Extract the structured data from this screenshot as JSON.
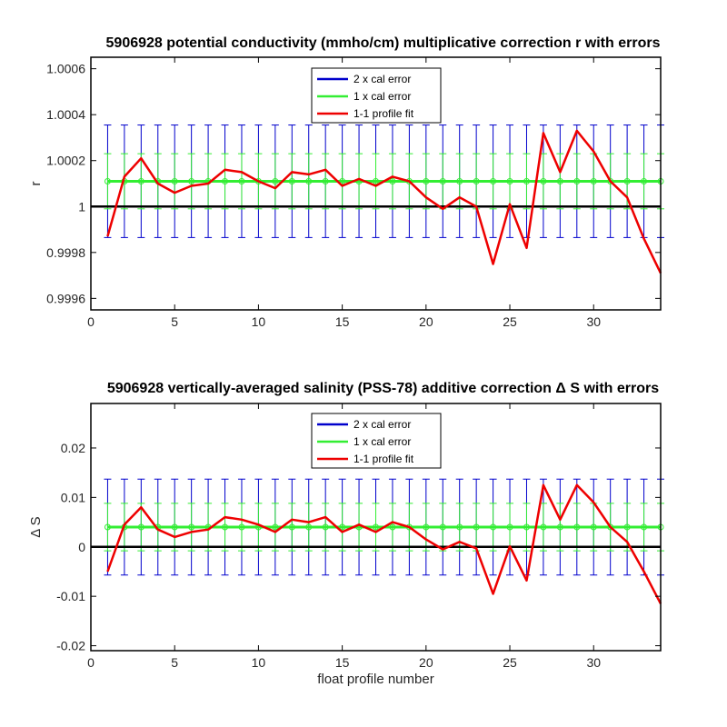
{
  "chart_data": [
    {
      "type": "line",
      "title": "5906928 potential conductivity (mmho/cm) multiplicative correction r with errors",
      "xlabel": "",
      "ylabel": "r",
      "xlim": [
        0,
        34
      ],
      "ylim": [
        0.99955,
        1.00065
      ],
      "xticks": [
        0,
        5,
        10,
        15,
        20,
        25,
        30
      ],
      "xtick_labels": [
        "0",
        "5",
        "10",
        "15",
        "20",
        "25",
        "30"
      ],
      "yticks": [
        0.9996,
        0.9998,
        1,
        1.0002,
        1.0004,
        1.0006
      ],
      "ytick_labels": [
        "0.9996",
        "0.9998",
        "1",
        "1.0002",
        "1.0004",
        "1.0006"
      ],
      "reference_line": 1,
      "legend_position": "top-center",
      "legend": [
        {
          "label": "2 x cal error",
          "color": "#0000cc"
        },
        {
          "label": "1 x cal error",
          "color": "#33ee33"
        },
        {
          "label": "1-1 profile fit",
          "color": "#ee0000"
        }
      ],
      "calibration": {
        "mean": 1.00011,
        "err1": 0.00012,
        "err2": 0.000245
      },
      "x": [
        1,
        2,
        3,
        4,
        5,
        6,
        7,
        8,
        9,
        10,
        11,
        12,
        13,
        14,
        15,
        16,
        17,
        18,
        19,
        20,
        21,
        22,
        23,
        24,
        25,
        26,
        27,
        28,
        29,
        30,
        31,
        32,
        33,
        34
      ],
      "series": [
        {
          "name": "1-1 profile fit",
          "values": [
            0.99987,
            1.00013,
            1.00021,
            1.0001,
            1.00006,
            1.00009,
            1.0001,
            1.00016,
            1.00015,
            1.00011,
            1.00008,
            1.00015,
            1.00014,
            1.00016,
            1.00009,
            1.00012,
            1.00009,
            1.00013,
            1.00011,
            1.00004,
            0.99999,
            1.00004,
            1.0,
            0.99975,
            1.00001,
            0.99982,
            1.00032,
            1.00015,
            1.00033,
            1.00024,
            1.00011,
            1.00004,
            0.99986,
            0.99971
          ]
        }
      ]
    },
    {
      "type": "line",
      "title": "5906928 vertically-averaged salinity (PSS-78) additive correction Δ S with errors",
      "xlabel": "float profile number",
      "ylabel": "Δ S",
      "xlim": [
        0,
        34
      ],
      "ylim": [
        -0.021,
        0.029
      ],
      "xticks": [
        0,
        5,
        10,
        15,
        20,
        25,
        30
      ],
      "xtick_labels": [
        "0",
        "5",
        "10",
        "15",
        "20",
        "25",
        "30"
      ],
      "yticks": [
        -0.02,
        -0.01,
        0,
        0.01,
        0.02
      ],
      "ytick_labels": [
        "-0.02",
        "-0.01",
        "0",
        "0.01",
        "0.02"
      ],
      "reference_line": 0,
      "legend_position": "top-center",
      "legend": [
        {
          "label": "2 x cal error",
          "color": "#0000cc"
        },
        {
          "label": "1 x cal error",
          "color": "#33ee33"
        },
        {
          "label": "1-1 profile fit",
          "color": "#ee0000"
        }
      ],
      "calibration": {
        "mean": 0.004,
        "err1": 0.0048,
        "err2": 0.0097
      },
      "x": [
        1,
        2,
        3,
        4,
        5,
        6,
        7,
        8,
        9,
        10,
        11,
        12,
        13,
        14,
        15,
        16,
        17,
        18,
        19,
        20,
        21,
        22,
        23,
        24,
        25,
        26,
        27,
        28,
        29,
        30,
        31,
        32,
        33,
        34
      ],
      "series": [
        {
          "name": "1-1 profile fit",
          "values": [
            -0.005,
            0.0045,
            0.008,
            0.0035,
            0.002,
            0.003,
            0.0035,
            0.006,
            0.0055,
            0.0045,
            0.003,
            0.0055,
            0.005,
            0.006,
            0.003,
            0.0045,
            0.003,
            0.005,
            0.004,
            0.0015,
            -0.0005,
            0.001,
            -0.0003,
            -0.0095,
            0.0001,
            -0.0068,
            0.0125,
            0.0055,
            0.0125,
            0.009,
            0.004,
            0.001,
            -0.005,
            -0.0115
          ]
        }
      ]
    }
  ]
}
